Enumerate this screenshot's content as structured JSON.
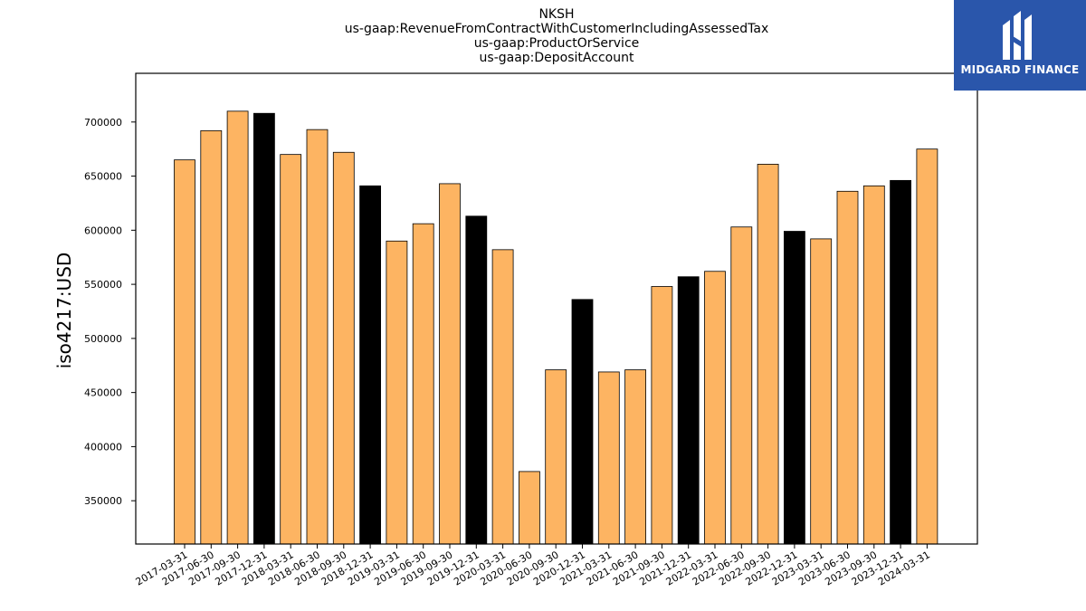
{
  "title_lines": [
    "NKSH",
    "us-gaap:RevenueFromContractWithCustomerIncludingAssessedTax",
    "us-gaap:ProductOrService",
    "us-gaap:DepositAccount"
  ],
  "logo": {
    "text": "MIDGARD FINANCE",
    "background": "#2a56ab"
  },
  "colors": {
    "default_bar": "#fdb462",
    "q4_bar": "#000000"
  },
  "chart_data": {
    "type": "bar",
    "ylabel": "iso4217:USD",
    "xlabel": "",
    "ylim": [
      310000,
      745000
    ],
    "yticks": [
      350000,
      400000,
      450000,
      500000,
      550000,
      600000,
      650000,
      700000
    ],
    "categories": [
      "2017-03-31",
      "2017-06-30",
      "2017-09-30",
      "2017-12-31",
      "2018-03-31",
      "2018-06-30",
      "2018-09-30",
      "2018-12-31",
      "2019-03-31",
      "2019-06-30",
      "2019-09-30",
      "2019-12-31",
      "2020-03-31",
      "2020-06-30",
      "2020-09-30",
      "2020-12-31",
      "2021-03-31",
      "2021-06-30",
      "2021-09-30",
      "2021-12-31",
      "2022-03-31",
      "2022-06-30",
      "2022-09-30",
      "2022-12-31",
      "2023-03-31",
      "2023-06-30",
      "2023-09-30",
      "2023-12-31",
      "2024-03-31"
    ],
    "values": [
      665000,
      692000,
      710000,
      708000,
      670000,
      693000,
      672000,
      641000,
      590000,
      606000,
      643000,
      613000,
      582000,
      377000,
      471000,
      536000,
      469000,
      471000,
      548000,
      557000,
      562000,
      603000,
      661000,
      599000,
      592000,
      636000,
      641000,
      646000,
      675000
    ]
  }
}
